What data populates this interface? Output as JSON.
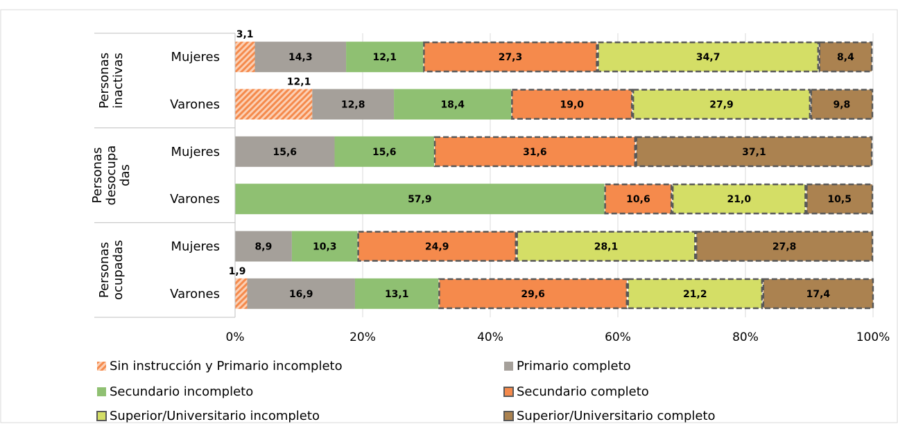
{
  "chart_data": {
    "type": "bar",
    "orientation": "horizontal",
    "stacked": "percent",
    "xlim": [
      0,
      100
    ],
    "x_ticks": [
      "0%",
      "20%",
      "40%",
      "60%",
      "80%",
      "100%"
    ],
    "groups": [
      "Personas inactivas",
      "Personas desocupadas",
      "Personas ocupadas"
    ],
    "group_label_lines": [
      [
        "Personas",
        "inactivas"
      ],
      [
        "Personas",
        "desocupa",
        "das"
      ],
      [
        "Personas",
        "ocupadas"
      ]
    ],
    "categories": [
      {
        "group": 0,
        "label": "Mujeres"
      },
      {
        "group": 0,
        "label": "Varones"
      },
      {
        "group": 1,
        "label": "Mujeres"
      },
      {
        "group": 1,
        "label": "Varones"
      },
      {
        "group": 2,
        "label": "Mujeres"
      },
      {
        "group": 2,
        "label": "Varones"
      }
    ],
    "series": [
      {
        "name": "Sin instrucción y Primario incompleto",
        "color": "#F58A4C",
        "pattern": "hatch",
        "values": [
          3.1,
          12.1,
          0,
          0,
          0,
          1.9
        ],
        "labels": [
          "3,1",
          "12,1",
          "",
          "",
          "",
          "1,9"
        ]
      },
      {
        "name": "Primario completo",
        "color": "#A5A09A",
        "pattern": "solid",
        "values": [
          14.3,
          12.8,
          15.6,
          0,
          8.9,
          16.9
        ],
        "labels": [
          "14,3",
          "12,8",
          "15,6",
          "",
          "8,9",
          "16,9"
        ]
      },
      {
        "name": "Secundario incompleto",
        "color": "#8FC072",
        "pattern": "solid",
        "values": [
          12.1,
          18.4,
          15.6,
          57.9,
          10.3,
          13.1
        ],
        "labels": [
          "12,1",
          "18,4",
          "15,6",
          "57,9",
          "10,3",
          "13,1"
        ]
      },
      {
        "name": "Secundario completo",
        "color": "#F58A4C",
        "pattern": "dashed-border",
        "values": [
          27.3,
          19.0,
          31.6,
          10.6,
          24.9,
          29.6
        ],
        "labels": [
          "27,3",
          "19,0",
          "31,6",
          "10,6",
          "24,9",
          "29,6"
        ]
      },
      {
        "name": "Superior/Universitario incompleto",
        "color": "#D4DE66",
        "pattern": "dashed-border",
        "values": [
          34.7,
          27.9,
          0,
          21.0,
          28.1,
          21.2
        ],
        "labels": [
          "34,7",
          "27,9",
          "",
          "21,0",
          "28,1",
          "21,2"
        ]
      },
      {
        "name": "Superior/Universitario completo",
        "color": "#AB8250",
        "pattern": "dashed-border",
        "values": [
          8.4,
          9.8,
          37.1,
          10.5,
          27.8,
          17.4
        ],
        "labels": [
          "8,4",
          "9,8",
          "37,1",
          "10,5",
          "27,8",
          "17,4"
        ]
      }
    ],
    "grid": true,
    "legend_position": "bottom"
  }
}
